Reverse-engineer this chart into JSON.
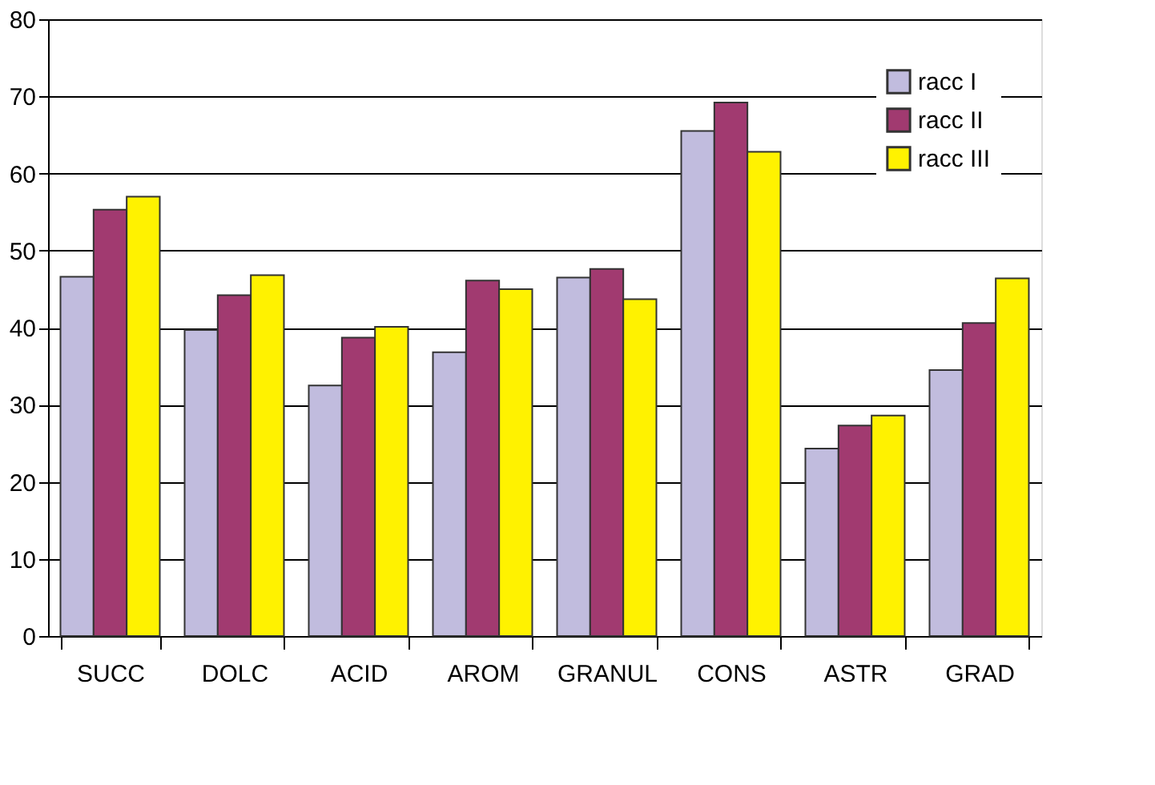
{
  "chart_data": {
    "type": "bar",
    "categories": [
      "SUCC",
      "DOLC",
      "ACID",
      "AROM",
      "GRANUL",
      "CONS",
      "ASTR",
      "GRAD"
    ],
    "series": [
      {
        "name": "racc I",
        "color": "#c1bcde",
        "values": [
          46.6,
          39.7,
          32.5,
          36.8,
          46.5,
          65.5,
          24.3,
          34.5
        ]
      },
      {
        "name": "racc II",
        "color": "#a13a70",
        "values": [
          55.3,
          44.2,
          38.7,
          46.1,
          47.6,
          69.2,
          27.3,
          40.6
        ]
      },
      {
        "name": "racc III",
        "color": "#fff200",
        "values": [
          57.0,
          46.8,
          40.1,
          45.0,
          43.7,
          62.8,
          28.6,
          46.4
        ]
      }
    ],
    "ylim": [
      0,
      80
    ],
    "yticks": [
      0,
      10,
      20,
      30,
      40,
      50,
      60,
      70,
      80
    ],
    "grid": "y",
    "legend": "top right"
  }
}
